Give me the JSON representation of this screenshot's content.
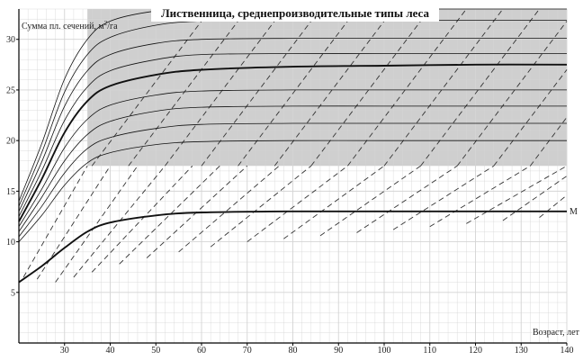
{
  "chart_data": {
    "type": "line",
    "title": "Лиственница, среднепроизводительные типы леса",
    "ylabel": "Сумма пл. сечений, м²/га",
    "ylabel_parts": [
      "Сумма пл. сечений, м",
      "2",
      "/га"
    ],
    "xlabel": "Возраст, лет",
    "xlim": [
      20,
      140
    ],
    "ylim": [
      0,
      33
    ],
    "x_ticks": [
      30,
      40,
      50,
      60,
      70,
      80,
      90,
      100,
      110,
      120,
      130,
      140
    ],
    "y_ticks": [
      5,
      10,
      15,
      20,
      25,
      30
    ],
    "grid": true,
    "shaded_band": {
      "y_from": 17.5,
      "y_to": 33,
      "x_from": 35,
      "x_to": 140,
      "color": "#cfcfcf"
    },
    "colors": {
      "curve": "#111111",
      "dashed": "#333333",
      "grid": "#d4d4d4",
      "axis": "#000000"
    },
    "series": [
      {
        "name": "М",
        "x": [
          20,
          25,
          30,
          35,
          40,
          50,
          60,
          80,
          100,
          120,
          140
        ],
        "y": [
          6.0,
          7.6,
          9.4,
          11.0,
          11.9,
          12.6,
          12.9,
          13.0,
          13.0,
          13.0,
          13.0
        ],
        "bold": true
      },
      {
        "x": [
          20,
          25,
          30,
          35,
          40,
          50,
          60,
          80,
          100,
          120,
          140
        ],
        "y": [
          10.0,
          12.6,
          15.6,
          17.8,
          18.8,
          19.6,
          19.9,
          20.0,
          20.0,
          20.0,
          20.0
        ]
      },
      {
        "x": [
          20,
          25,
          30,
          35,
          40,
          50,
          60,
          80,
          100,
          120,
          140
        ],
        "y": [
          10.5,
          13.5,
          16.8,
          19.2,
          20.3,
          21.2,
          21.6,
          21.7,
          21.7,
          21.7,
          21.7
        ]
      },
      {
        "x": [
          20,
          25,
          30,
          35,
          40,
          50,
          60,
          80,
          100,
          120,
          140
        ],
        "y": [
          11.0,
          14.4,
          18.0,
          20.6,
          21.9,
          22.9,
          23.3,
          23.4,
          23.4,
          23.4,
          23.4
        ]
      },
      {
        "x": [
          20,
          25,
          30,
          35,
          40,
          50,
          60,
          80,
          100,
          120,
          140
        ],
        "y": [
          11.5,
          15.2,
          19.3,
          22.1,
          23.5,
          24.5,
          24.9,
          25.0,
          25.0,
          25.0,
          25.0
        ]
      },
      {
        "x": [
          20,
          25,
          30,
          35,
          40,
          50,
          60,
          80,
          100,
          120,
          140
        ],
        "y": [
          12.0,
          16.2,
          20.8,
          23.9,
          25.4,
          26.5,
          27.0,
          27.3,
          27.4,
          27.5,
          27.5
        ],
        "bold": true
      },
      {
        "x": [
          20,
          25,
          30,
          35,
          40,
          50,
          60,
          80,
          100,
          120,
          140
        ],
        "y": [
          12.5,
          17.0,
          22.0,
          25.3,
          26.9,
          28.0,
          28.5,
          28.6,
          28.6,
          28.6,
          28.6
        ]
      },
      {
        "x": [
          20,
          25,
          30,
          35,
          40,
          50,
          60,
          80,
          100,
          120,
          140
        ],
        "y": [
          13.0,
          17.9,
          23.4,
          26.9,
          28.5,
          29.6,
          30.0,
          30.1,
          30.1,
          30.1,
          30.1
        ]
      },
      {
        "x": [
          20,
          25,
          30,
          35,
          40,
          50,
          60,
          80,
          100,
          120,
          140
        ],
        "y": [
          13.5,
          18.8,
          24.8,
          28.5,
          30.2,
          31.4,
          31.8,
          31.9,
          31.9,
          31.9,
          31.9
        ]
      },
      {
        "x": [
          20,
          25,
          30,
          35,
          40,
          50,
          60,
          80,
          100,
          120,
          140
        ],
        "y": [
          14.0,
          19.7,
          26.1,
          30.0,
          31.8,
          32.8,
          33.0,
          33.0,
          33.0,
          33.0,
          33.0
        ]
      }
    ],
    "dashed_lines": [
      {
        "x": [
          21,
          35
        ],
        "y": [
          6.5,
          17.5
        ]
      },
      {
        "x": [
          24,
          40
        ],
        "y": [
          6.3,
          17.5
        ]
      },
      {
        "x": [
          28,
          46
        ],
        "y": [
          6.0,
          17.5
        ]
      },
      {
        "x": [
          32,
          52
        ],
        "y": [
          6.5,
          17.5
        ]
      },
      {
        "x": [
          36,
          58
        ],
        "y": [
          7.0,
          17.5
        ]
      },
      {
        "x": [
          42,
          64
        ],
        "y": [
          7.8,
          17.5
        ]
      },
      {
        "x": [
          48,
          70
        ],
        "y": [
          8.4,
          17.5
        ]
      },
      {
        "x": [
          55,
          77
        ],
        "y": [
          9.0,
          17.5
        ]
      },
      {
        "x": [
          62,
          84
        ],
        "y": [
          9.5,
          17.5
        ]
      },
      {
        "x": [
          70,
          92
        ],
        "y": [
          10.0,
          17.5
        ]
      },
      {
        "x": [
          78,
          100
        ],
        "y": [
          10.3,
          17.5
        ]
      },
      {
        "x": [
          86,
          108
        ],
        "y": [
          10.6,
          17.5
        ]
      },
      {
        "x": [
          94,
          116
        ],
        "y": [
          10.9,
          17.5
        ]
      },
      {
        "x": [
          102,
          124
        ],
        "y": [
          11.2,
          17.5
        ]
      },
      {
        "x": [
          110,
          132
        ],
        "y": [
          11.5,
          17.5
        ]
      },
      {
        "x": [
          118,
          140
        ],
        "y": [
          11.8,
          17.5
        ]
      },
      {
        "x": [
          126,
          140
        ],
        "y": [
          12.1,
          16.5
        ]
      },
      {
        "x": [
          134,
          140
        ],
        "y": [
          12.4,
          14.6
        ]
      },
      {
        "x": [
          36,
          62
        ],
        "y": [
          17.5,
          33
        ]
      },
      {
        "x": [
          44,
          70
        ],
        "y": [
          17.5,
          33
        ]
      },
      {
        "x": [
          52,
          78
        ],
        "y": [
          17.5,
          33
        ]
      },
      {
        "x": [
          60,
          86
        ],
        "y": [
          17.5,
          33
        ]
      },
      {
        "x": [
          68,
          94
        ],
        "y": [
          17.5,
          33
        ]
      },
      {
        "x": [
          76,
          102
        ],
        "y": [
          17.5,
          33
        ]
      },
      {
        "x": [
          84,
          110
        ],
        "y": [
          17.5,
          33
        ]
      },
      {
        "x": [
          92,
          118
        ],
        "y": [
          17.5,
          33
        ]
      },
      {
        "x": [
          100,
          126
        ],
        "y": [
          17.5,
          33
        ]
      },
      {
        "x": [
          108,
          134
        ],
        "y": [
          17.5,
          33
        ]
      },
      {
        "x": [
          116,
          140
        ],
        "y": [
          17.5,
          31.8
        ]
      },
      {
        "x": [
          124,
          140
        ],
        "y": [
          17.5,
          27.0
        ]
      },
      {
        "x": [
          132,
          140
        ],
        "y": [
          17.5,
          22.3
        ]
      }
    ]
  }
}
